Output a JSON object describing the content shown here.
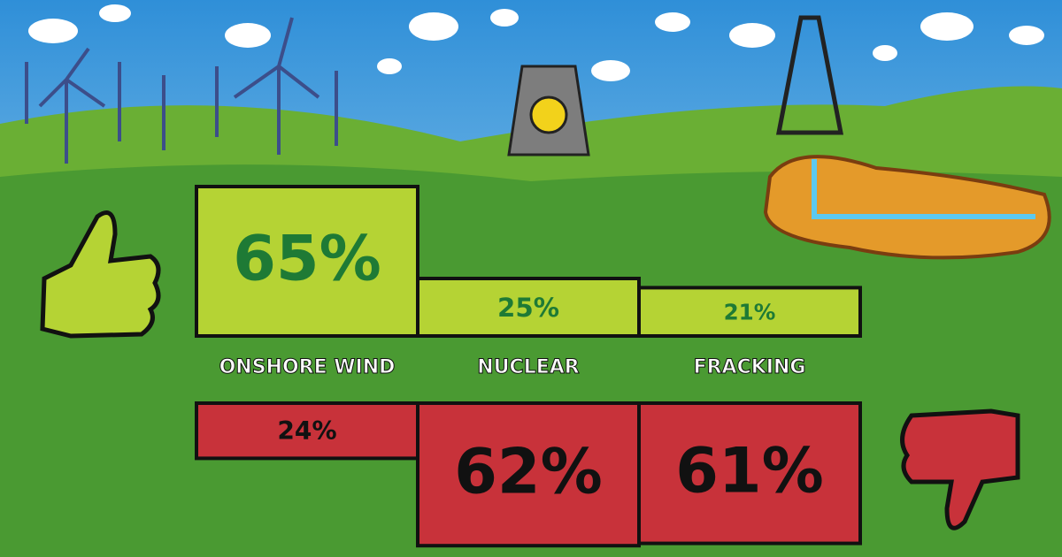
{
  "chart_data": {
    "type": "diverging_bar",
    "categories": [
      "ONSHORE WIND",
      "NUCLEAR",
      "FRACKING"
    ],
    "series": [
      {
        "color": "#b5d334",
        "values": [
          65,
          25,
          21
        ],
        "value_labels": [
          "65%",
          "25%",
          "21%"
        ]
      },
      {
        "color": "#c8323a",
        "values": [
          24,
          62,
          61
        ],
        "value_labels": [
          "24%",
          "62%",
          "61%"
        ]
      }
    ]
  }
}
